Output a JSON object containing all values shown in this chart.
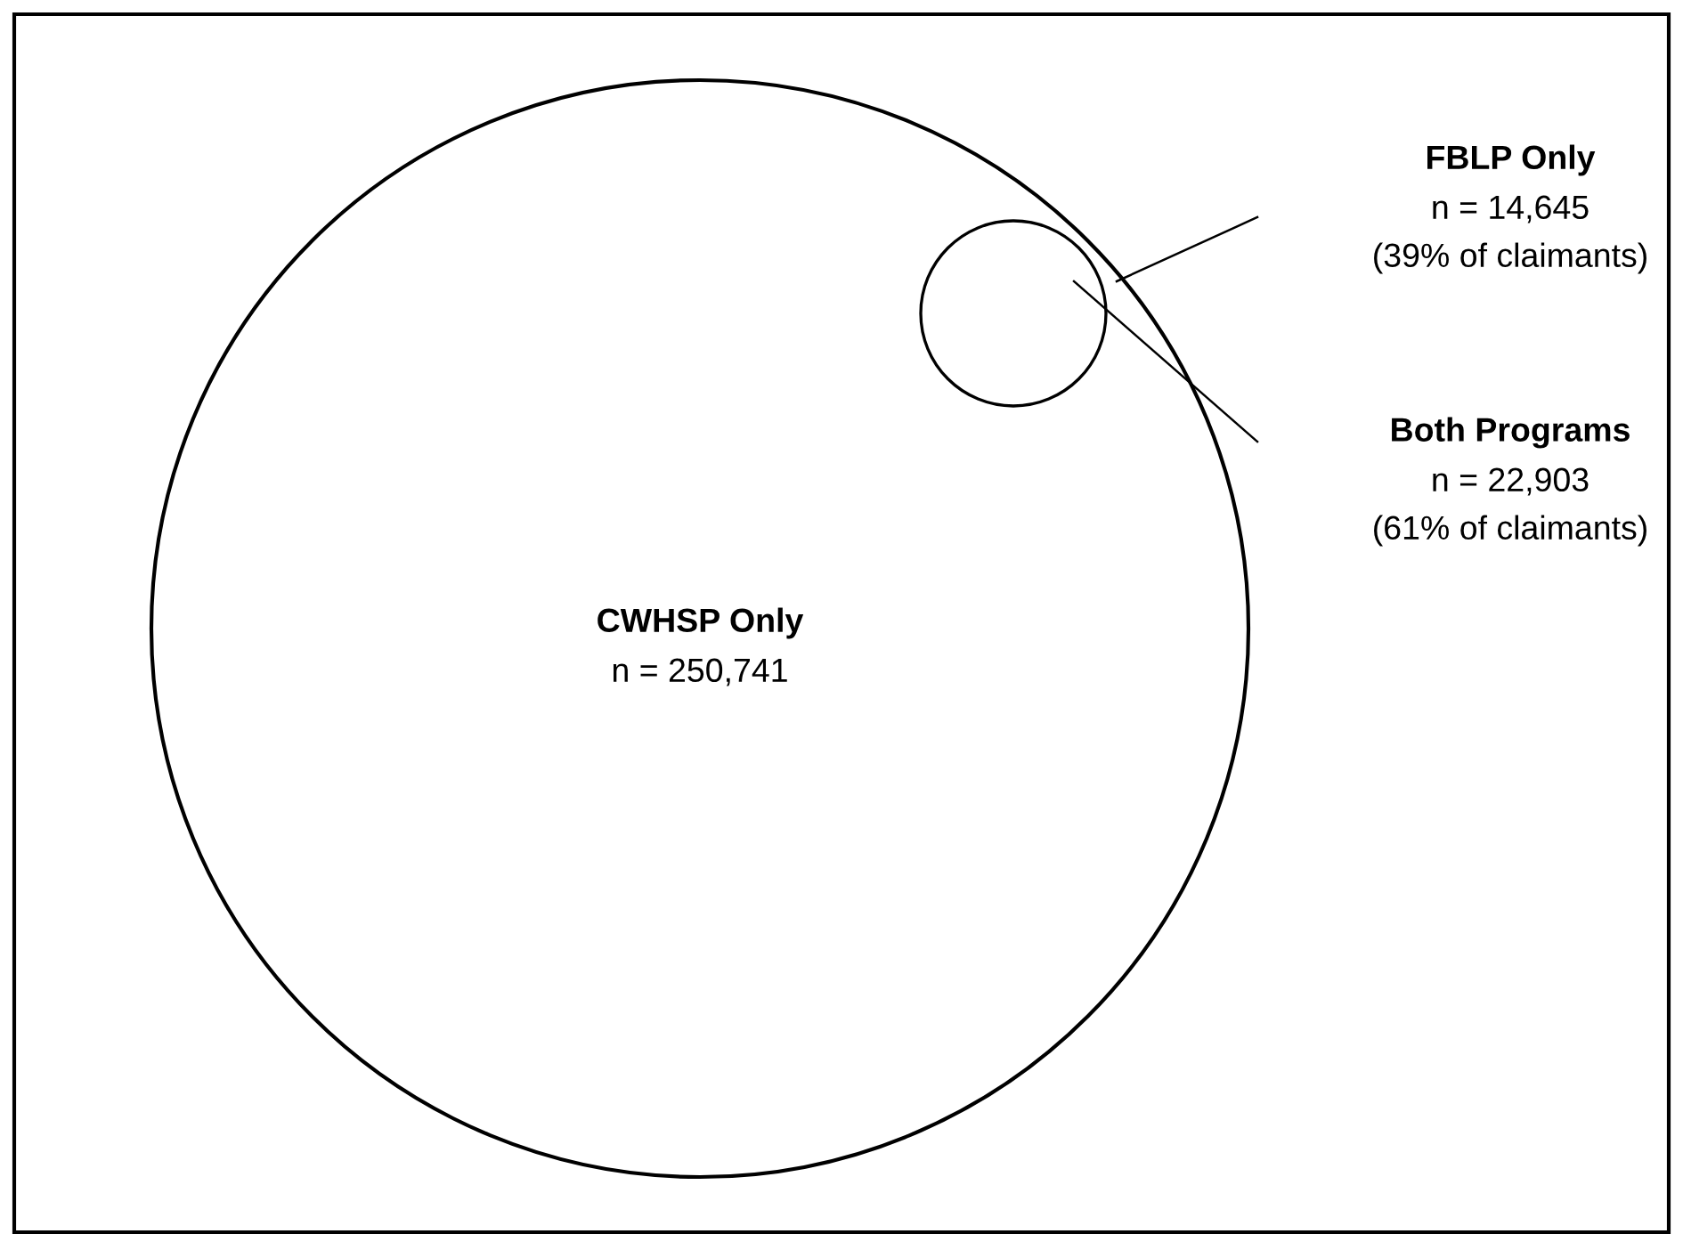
{
  "chart_data": {
    "type": "other",
    "categories": [
      "CWHSP Only",
      "FBLP Only",
      "Both Programs"
    ],
    "values": [
      250741,
      14645,
      22903
    ],
    "value_labels": [
      "n = 250,741",
      "n = 14,645",
      "n = 22,903"
    ],
    "annotations": [
      null,
      "(39% of claimants)",
      "(61% of claimants)"
    ],
    "color": "#000000"
  }
}
